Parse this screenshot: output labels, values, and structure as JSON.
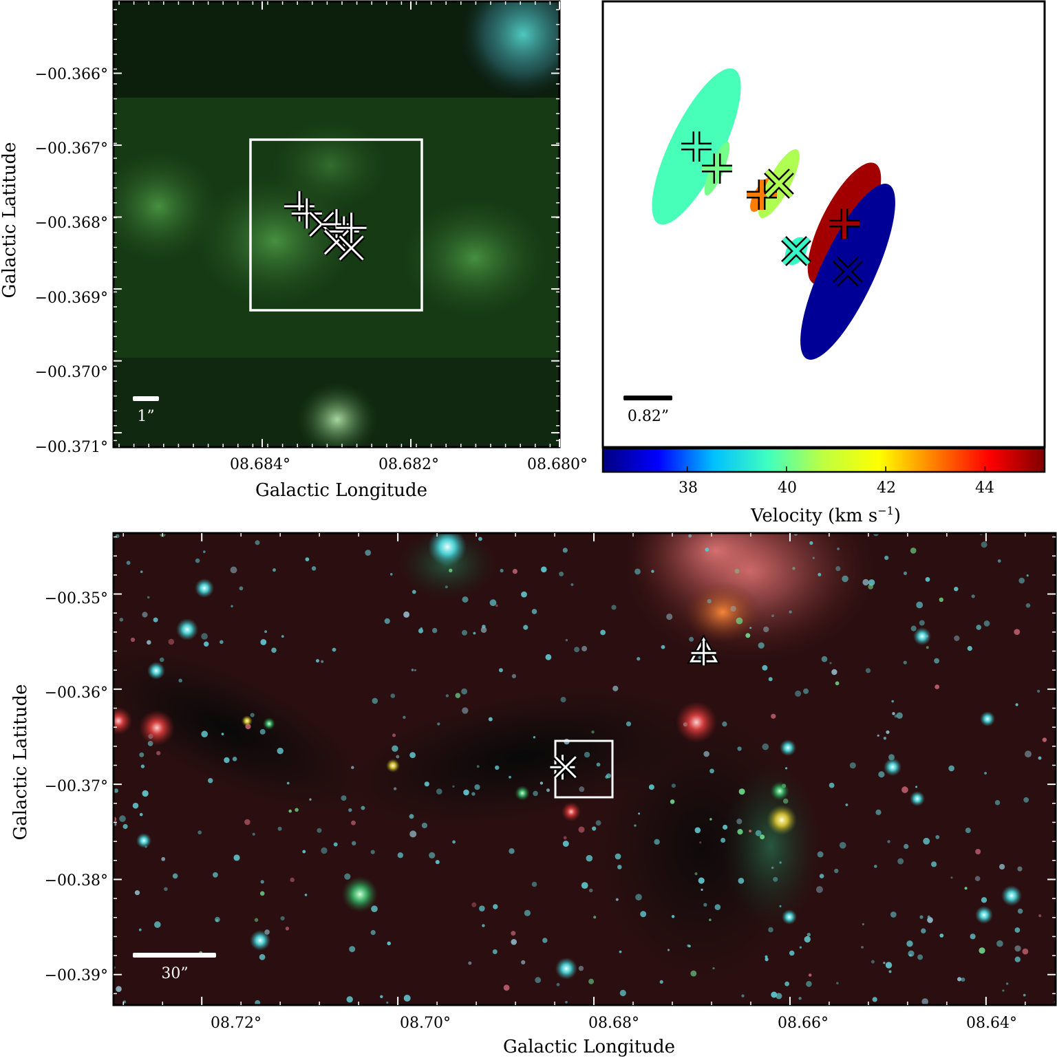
{
  "panels": {
    "top_left": {
      "xlabel": "Galactic Longitude",
      "ylabel": "Galactic Latitude",
      "xticks": [
        "08.684°",
        "08.682°",
        "08.680°"
      ],
      "yticks": [
        "−00.366°",
        "−00.367°",
        "−00.368°",
        "−00.369°",
        "−00.370°",
        "−00.371°"
      ],
      "scalebar_label": "1”",
      "background_color": "#0d2a10",
      "marker_color": "#ffffff"
    },
    "top_right": {
      "scalebar_label": "0.82”",
      "colorbar": {
        "label": "Velocity (km s",
        "label_sup": "−1",
        "label_close": ")",
        "ticks": [
          "38",
          "40",
          "42",
          "44"
        ],
        "colormap": [
          "#00007f",
          "#0000ff",
          "#00bfff",
          "#40ffbf",
          "#bfff40",
          "#ffff00",
          "#ff7f00",
          "#ff0000",
          "#7f0000"
        ]
      }
    },
    "bottom": {
      "xlabel": "Galactic Longitude",
      "ylabel": "Galactic Latitude",
      "xticks": [
        "08.72°",
        "08.70°",
        "08.68°",
        "08.66°",
        "08.64°"
      ],
      "yticks": [
        "−00.35°",
        "−00.36°",
        "−00.37°",
        "−00.38°",
        "−00.39°"
      ],
      "scalebar_label": "30”",
      "background_color": "#2a0d0d"
    }
  },
  "chart_data": [
    {
      "type": "scatter",
      "panel": "top_left",
      "xlabel": "Galactic Longitude",
      "ylabel": "Galactic Latitude",
      "xlim": [
        8.686,
        8.68
      ],
      "ylim": [
        -0.3712,
        -0.365
      ],
      "xticks": [
        8.684,
        8.682,
        8.68
      ],
      "yticks": [
        -0.366,
        -0.367,
        -0.368,
        -0.369,
        -0.37,
        -0.371
      ],
      "zoom_box": {
        "l": [
          8.6838,
          8.6815
        ],
        "b": [
          -0.36688,
          -0.36917
        ]
      },
      "points": [
        {
          "l": 8.6835,
          "b": -0.36785,
          "marker": "plus"
        },
        {
          "l": 8.6834,
          "b": -0.36795,
          "marker": "plus"
        },
        {
          "l": 8.6832,
          "b": -0.3681,
          "marker": "cross"
        },
        {
          "l": 8.683,
          "b": -0.3681,
          "marker": "plus"
        },
        {
          "l": 8.6829,
          "b": -0.3682,
          "marker": "plus"
        },
        {
          "l": 8.6828,
          "b": -0.36815,
          "marker": "plus"
        },
        {
          "l": 8.683,
          "b": -0.36835,
          "marker": "cross"
        },
        {
          "l": 8.6828,
          "b": -0.36843,
          "marker": "cross"
        }
      ]
    },
    {
      "type": "scatter",
      "panel": "top_right",
      "color_axis": "Velocity (km s^-1)",
      "clim": [
        36.3,
        45.2
      ],
      "colorbar_ticks": [
        38,
        40,
        42,
        44
      ],
      "points": [
        {
          "dx": -1.85,
          "dy": 1.52,
          "velocity": 39.7,
          "marker": "plus",
          "ellipse": {
            "a": 1.25,
            "b": 0.38,
            "angle": -26
          }
        },
        {
          "dx": -1.55,
          "dy": 1.2,
          "velocity": 40.1,
          "marker": "plus",
          "ellipse": {
            "a": 0.42,
            "b": 0.1,
            "angle": -22
          }
        },
        {
          "dx": -0.9,
          "dy": 0.82,
          "velocity": 43.0,
          "marker": "plus",
          "ellipse": {
            "a": 0.28,
            "b": 0.11,
            "angle": -30
          }
        },
        {
          "dx": -0.65,
          "dy": 0.98,
          "velocity": 40.6,
          "marker": "cross",
          "ellipse": {
            "a": 0.56,
            "b": 0.16,
            "angle": -28
          }
        },
        {
          "dx": -0.4,
          "dy": 0.0,
          "velocity": 39.5,
          "marker": "cross",
          "ellipse": {
            "a": 0.22,
            "b": 0.14,
            "angle": -30
          }
        },
        {
          "dx": 0.3,
          "dy": 0.4,
          "velocity": 44.9,
          "marker": "plus",
          "ellipse": {
            "a": 0.98,
            "b": 0.33,
            "angle": -27
          }
        },
        {
          "dx": 0.35,
          "dy": -0.3,
          "velocity": 36.5,
          "marker": "cross",
          "ellipse": {
            "a": 1.4,
            "b": 0.39,
            "angle": -25
          }
        }
      ]
    },
    {
      "type": "scatter",
      "panel": "bottom",
      "xlabel": "Galactic Longitude",
      "ylabel": "Galactic Latitude",
      "xlim": [
        8.729,
        8.6329
      ],
      "ylim": [
        -0.3932,
        -0.3436
      ],
      "xticks": [
        8.72,
        8.7,
        8.68,
        8.66,
        8.64
      ],
      "yticks": [
        -0.35,
        -0.36,
        -0.37,
        -0.38,
        -0.39
      ],
      "zoom_box": {
        "l": [
          8.686,
          8.68
        ],
        "b": [
          -0.3658,
          -0.3712
        ]
      },
      "points": [
        {
          "l": 8.6832,
          "b": -0.3682,
          "marker": "plus"
        },
        {
          "l": 8.6829,
          "b": -0.3682,
          "marker": "cross"
        },
        {
          "l": 8.6688,
          "b": -0.3562,
          "marker": "triangle"
        },
        {
          "l": 8.6688,
          "b": -0.3562,
          "marker": "plus"
        }
      ]
    }
  ]
}
